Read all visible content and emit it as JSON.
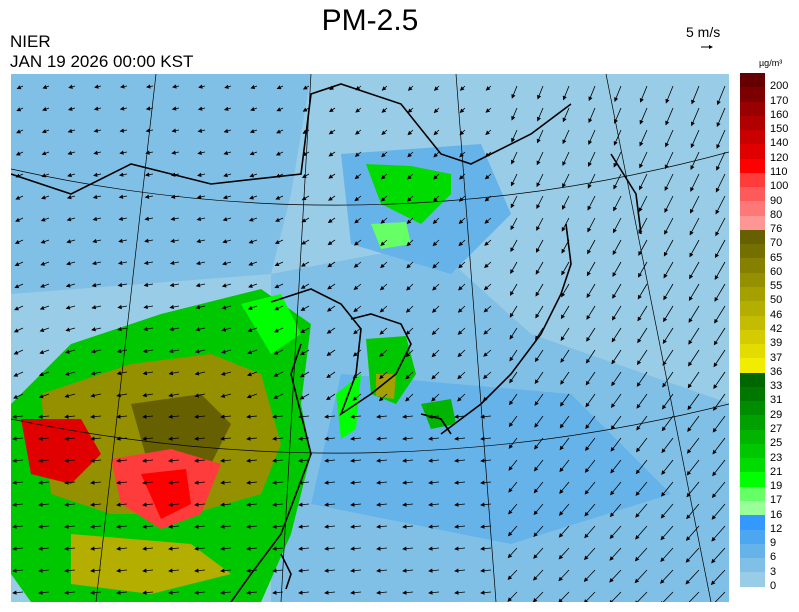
{
  "title": "PM-2.5",
  "organization": "NIER",
  "timestamp": "JAN 19 2026 00:00 KST",
  "wind_reference": {
    "label": "5 m/s",
    "icon": "arrow-right-icon"
  },
  "legend": {
    "unit": "µg/m³",
    "labels": [
      "200",
      "170",
      "160",
      "150",
      "140",
      "120",
      "110",
      "100",
      "90",
      "80",
      "76",
      "70",
      "65",
      "60",
      "55",
      "50",
      "46",
      "42",
      "39",
      "37",
      "36",
      "33",
      "31",
      "29",
      "27",
      "25",
      "23",
      "21",
      "19",
      "17",
      "16",
      "12",
      "9",
      "6",
      "3",
      "0"
    ],
    "colors": [
      "#660000",
      "#7d0000",
      "#990000",
      "#b00000",
      "#c80000",
      "#e00000",
      "#ff0000",
      "#ff3c3c",
      "#ff5a5a",
      "#ff7878",
      "#ff9696",
      "#666000",
      "#737000",
      "#858000",
      "#959000",
      "#a3a000",
      "#b3ae00",
      "#c4bc00",
      "#d4cc00",
      "#e3dc00",
      "#f2ec00",
      "#006600",
      "#007800",
      "#008c00",
      "#00a000",
      "#00b400",
      "#00c800",
      "#00dc00",
      "#00ff00",
      "#66ff66",
      "#99ff99",
      "#3399ff",
      "#4da6f0",
      "#66b3ea",
      "#80c0e6",
      "#99cce6"
    ]
  }
}
